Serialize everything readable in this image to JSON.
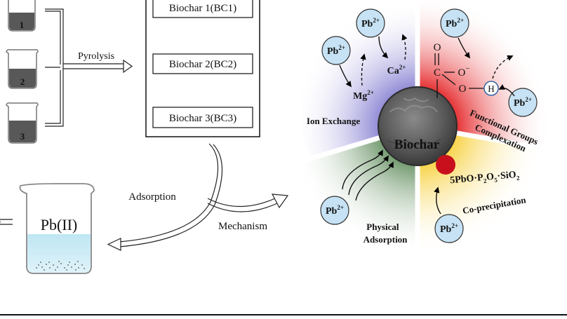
{
  "beakers": [
    "1",
    "2",
    "3"
  ],
  "pyrolysis_label": "Pyrolysis",
  "biochar_items": [
    "Biochar 1(BC1)",
    "Biochar 2(BC2)",
    "Biochar 3(BC3)"
  ],
  "adsorption_label": "Adsorption",
  "mechanism_label": "Mechanism",
  "solution_label": "Pb(II)",
  "center_label": "Biochar",
  "ion": {
    "symbol": "Pb",
    "charge": "2+"
  },
  "ion_exchange": {
    "label": "Ion Exchange",
    "ca": {
      "symbol": "Ca",
      "charge": "2+"
    },
    "mg": {
      "symbol": "Mg",
      "charge": "2+"
    }
  },
  "functional": {
    "line1": "Functional Groups",
    "line2": "Complexation",
    "atom_c": "C",
    "atom_o": "O",
    "atom_o_minus": "O",
    "minus": "−",
    "atom_h": "H"
  },
  "precip": {
    "label": "Co-precipitation",
    "formula_parts": [
      "5PbO·P",
      "2",
      "O",
      "5",
      "·SiO",
      "2"
    ]
  },
  "physical": {
    "line1": "Physical",
    "line2": "Adsorption"
  },
  "colors": {
    "ion_exchange": "#a7a2db",
    "functional": "#e8393a",
    "precip": "#f7d658",
    "physical": "#8fae8c",
    "ion_bubble": "#c6e2f4",
    "precip_dot": "#c8101c"
  }
}
